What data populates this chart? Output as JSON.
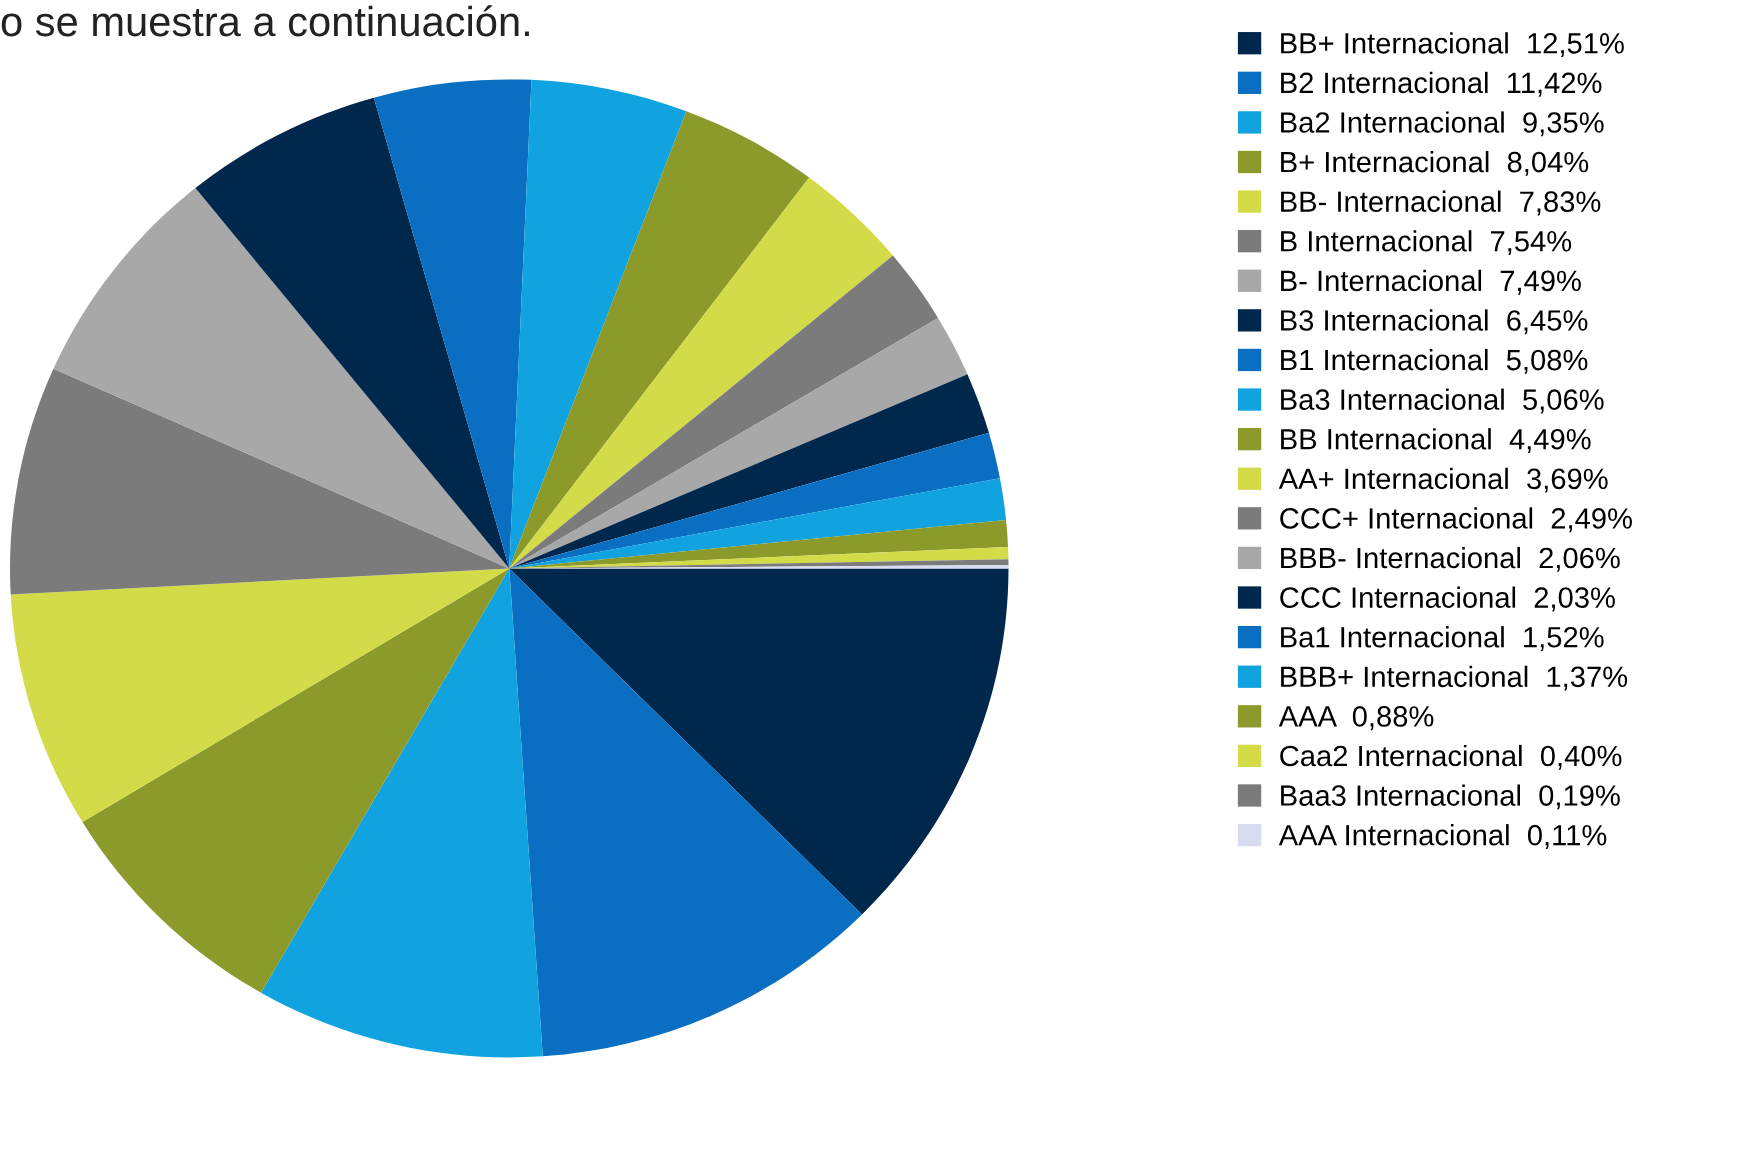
{
  "chart_data": {
    "type": "pie",
    "categories": [
      "BB+ Internacional",
      "B2 Internacional",
      "Ba2 Internacional",
      "B+ Internacional",
      "BB- Internacional",
      "B Internacional",
      "B- Internacional",
      "B3 Internacional",
      "B1 Internacional",
      "Ba3 Internacional",
      "BB Internacional",
      "AA+ Internacional",
      "CCC+ Internacional",
      "BBB- Internacional",
      "CCC Internacional",
      "Ba1 Internacional",
      "BBB+ Internacional",
      "AAA",
      "Caa2 Internacional",
      "Baa3 Internacional",
      "AAA Internacional"
    ],
    "values": [
      12.51,
      11.42,
      9.35,
      8.04,
      7.83,
      7.54,
      7.49,
      6.45,
      5.08,
      5.06,
      4.49,
      3.69,
      2.49,
      2.06,
      2.03,
      1.52,
      1.37,
      0.88,
      0.4,
      0.19,
      0.11
    ],
    "value_labels": [
      "12,51%",
      "11,42%",
      "9,35%",
      "8,04%",
      "7,83%",
      "7,54%",
      "7,49%",
      "6,45%",
      "5,08%",
      "5,06%",
      "4,49%",
      "3,69%",
      "2,49%",
      "2,06%",
      "2,03%",
      "1,52%",
      "1,37%",
      "0,88%",
      "0,40%",
      "0,19%",
      "0,11%"
    ],
    "colors": [
      "#00284d",
      "#0a6fc2",
      "#10a3df",
      "#8c9a2c",
      "#d3dc48",
      "#7b7b7b",
      "#a8a8a8",
      "#00284d",
      "#0a6fc2",
      "#10a3df",
      "#8c9a2c",
      "#d3dc48",
      "#7b7b7b",
      "#a8a8a8",
      "#00284d",
      "#0a6fc2",
      "#10a3df",
      "#8c9a2c",
      "#d3dc48",
      "#7b7b7b",
      "#d8dcf0"
    ],
    "legend": "right",
    "annotations": [
      "o se muestra a continuación."
    ]
  }
}
